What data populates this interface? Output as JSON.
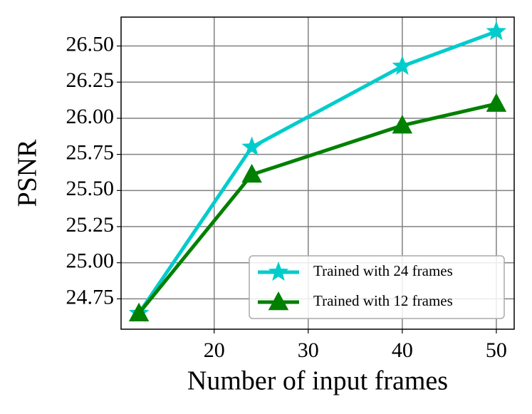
{
  "chart_data": {
    "type": "line",
    "x_label": "Number of input frames",
    "y_label": "PSNR",
    "x": [
      12,
      24,
      40,
      50
    ],
    "series": [
      {
        "name": "Trained with 24 frames",
        "color": "#00cccc",
        "marker": "star",
        "values": [
          24.65,
          25.8,
          26.36,
          26.6
        ]
      },
      {
        "name": "Trained with 12 frames",
        "color": "#008000",
        "marker": "triangle",
        "values": [
          24.65,
          25.61,
          25.95,
          26.1
        ]
      }
    ],
    "xlim": [
      10.1,
      51.9
    ],
    "xticks": [
      20,
      30,
      40,
      50
    ],
    "ylim": [
      24.54,
      26.7
    ],
    "yticks": [
      {
        "value": 24.75,
        "label": "24.75"
      },
      {
        "value": 25.0,
        "label": "25.00"
      },
      {
        "value": 25.25,
        "label": "25.25"
      },
      {
        "value": 25.5,
        "label": "25.50"
      },
      {
        "value": 25.75,
        "label": "25.75"
      },
      {
        "value": 26.0,
        "label": "26.00"
      },
      {
        "value": 26.25,
        "label": "26.25"
      },
      {
        "value": 26.5,
        "label": "26.50"
      }
    ],
    "grid": true,
    "legend": "lower right"
  }
}
